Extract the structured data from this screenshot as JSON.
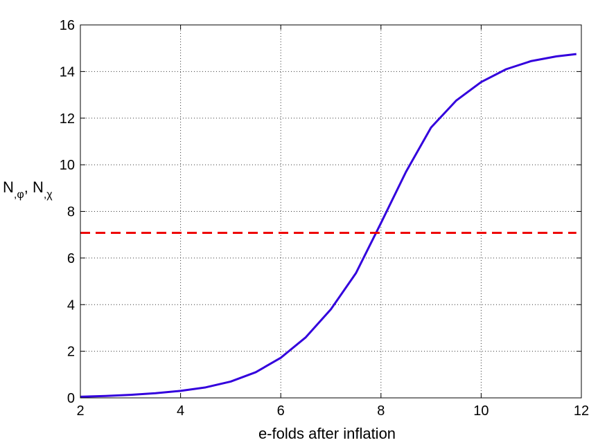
{
  "chart_data": {
    "type": "line",
    "title": "",
    "xlabel": "e-folds after inflation",
    "ylabel_main": "N",
    "ylabel_sub1": ",φ",
    "ylabel_sep": ", ",
    "ylabel_sub2": ",χ",
    "xlim": [
      2,
      12
    ],
    "ylim": [
      0,
      16
    ],
    "xticks": [
      2,
      4,
      6,
      8,
      10,
      12
    ],
    "yticks": [
      0,
      2,
      4,
      6,
      8,
      10,
      12,
      14,
      16
    ],
    "grid": true,
    "series": [
      {
        "color": "#3300dd",
        "style": "solid",
        "x": [
          2.0,
          2.5,
          3.0,
          3.5,
          4.0,
          4.5,
          5.0,
          5.5,
          6.0,
          6.5,
          7.0,
          7.5,
          8.0,
          8.5,
          9.0,
          9.5,
          10.0,
          10.5,
          11.0,
          11.5,
          11.9
        ],
        "y": [
          0.05,
          0.08,
          0.13,
          0.2,
          0.3,
          0.45,
          0.7,
          1.1,
          1.72,
          2.6,
          3.8,
          5.35,
          7.5,
          9.7,
          11.6,
          12.75,
          13.55,
          14.1,
          14.45,
          14.65,
          14.75
        ]
      },
      {
        "color": "#ee0000",
        "style": "dashed",
        "x": [
          2.0,
          11.9
        ],
        "y": [
          7.08,
          7.08
        ]
      }
    ]
  }
}
